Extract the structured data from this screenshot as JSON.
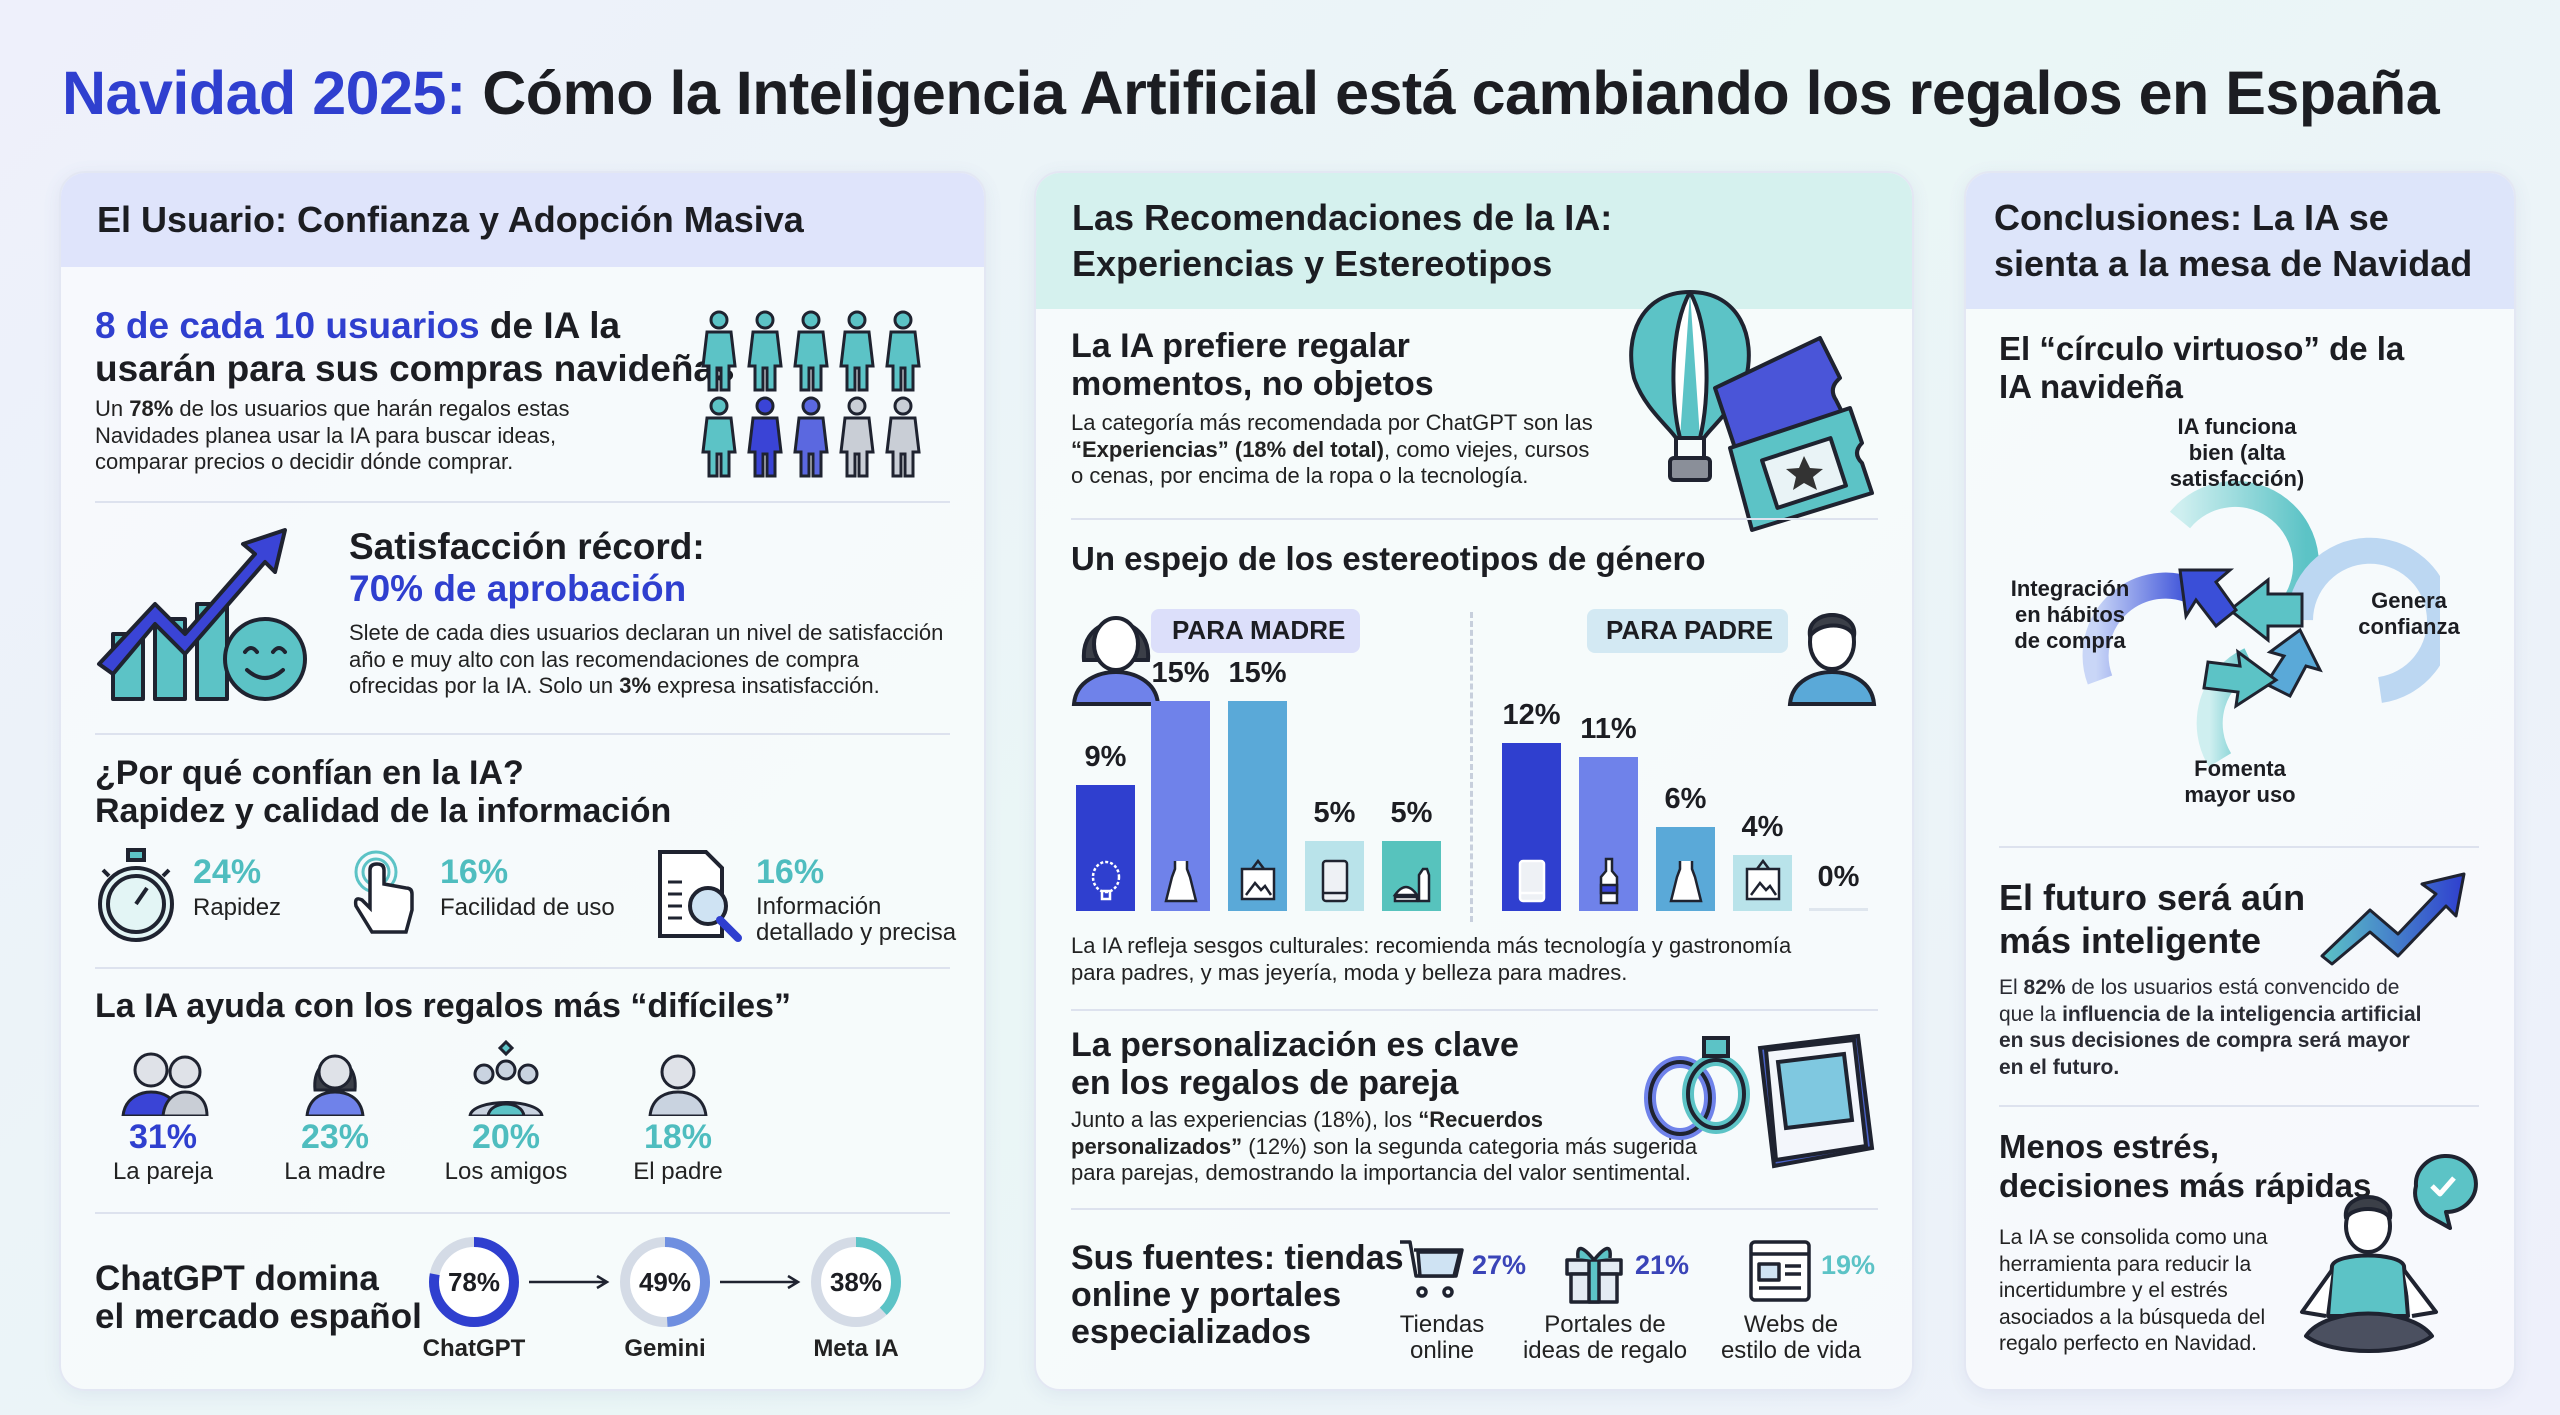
{
  "title": {
    "accent": "Navidad 2025:",
    "rest": " Cómo la Inteligencia Artificial está cambiando los regalos en España"
  },
  "colors": {
    "blue": "#2f3fcf",
    "teal": "#4fbdbf",
    "mid_blue": "#6f82ea",
    "light_blue": "#5aa9d8",
    "gray": "#c9ced6"
  },
  "panel1": {
    "header": "El Usuario: Confianza y Adopción Masiva",
    "adoption": {
      "heading_accent": "8 de cada 10 usuarios",
      "heading_rest": " de IA la\nusarán para sus compras navideñas",
      "body_pre": "Un ",
      "body_bold": "78%",
      "body_post": " de los usuarios que harán regalos estas\nNavidades planea usar la IA para buscar ideas,\ncomparar precios o decidir dónde comprar.",
      "icon": "people-grid-icon"
    },
    "satisfaction": {
      "heading": "Satisfacción récord:",
      "heading_accent": "70% de aprobación",
      "body_pre": "Slete de cada dies usuarios declaran un nivel de satisfacción\naño e muy alto con las recomendaciones de compra\nofrecidas por la IA. Solo un ",
      "body_bold": "3%",
      "body_post": " expresa insatisfacción.",
      "icon": "chart-arrow-smiley-icon"
    },
    "trust": {
      "heading": "¿Por qué confían en la IA?\nRapidez y calidad de la información",
      "items": [
        {
          "value": "24%",
          "label": "Rapidez",
          "icon": "stopwatch-icon"
        },
        {
          "value": "16%",
          "label": "Facilidad de uso",
          "icon": "touch-hand-icon"
        },
        {
          "value": "16%",
          "label": "Información\ndetallado y precisa",
          "icon": "document-search-icon"
        }
      ]
    },
    "difficult": {
      "heading": "La IA ayuda con los regalos más “difíciles”",
      "items": [
        {
          "value": "31%",
          "label": "La pareja",
          "icon": "couple-icon"
        },
        {
          "value": "23%",
          "label": "La madre",
          "icon": "woman-icon"
        },
        {
          "value": "20%",
          "label": "Los amigos",
          "icon": "friends-icon"
        },
        {
          "value": "18%",
          "label": "El padre",
          "icon": "man-icon"
        }
      ]
    },
    "market": {
      "heading": "ChatGPT domina\nel mercado español",
      "items": [
        {
          "value": 78,
          "value_label": "78%",
          "label": "ChatGPT",
          "color": "#2f3fcf"
        },
        {
          "value": 49,
          "value_label": "49%",
          "label": "Gemini",
          "color": "#6f8fe0"
        },
        {
          "value": 38,
          "value_label": "38%",
          "label": "Meta IA",
          "color": "#5cc3c6"
        }
      ]
    }
  },
  "panel2": {
    "header": "Las Recomendaciones de la IA:\nExperiencias y Estereotipos",
    "experiences": {
      "heading": "La IA prefiere regalar\nmomentos, no objetos",
      "body_pre": "La categoría más recomendada por ChatGPT son las\n",
      "body_bold": "“Experiencias” (18% del total)",
      "body_post": ", como viejes, cursos\no cenas, por encima de la ropa o la tecnología."
    },
    "stereotypes": {
      "heading": "Un espejo de los estereotipos de género",
      "caption": "La IA refleja sesgos culturales: recomienda más tecnología y gastronomía\npara padres, y mas jeyería, moda y belleza para madres."
    },
    "personal": {
      "heading": "La personalización es clave\nen los regalos de pareja",
      "body_pre": "Junto a las experiencias (18%), los ",
      "body_bold": "“Recuerdos\npersonalizados”",
      "body_post": " (12%) son la segunda categoria más sugerida\npara parejas, demostrando la importancia del valor sentimental."
    },
    "sources": {
      "heading": "Sus fuentes: tiendas\nonline y portales\nespecializados",
      "items": [
        {
          "value": "27%",
          "label": "Tiendas\nonline",
          "icon": "shopping-cart-icon"
        },
        {
          "value": "21%",
          "label": "Portales de\nideas de regalo",
          "icon": "gift-icon"
        },
        {
          "value": "19%",
          "label": "Webs de\nestilo de vida",
          "icon": "web-page-icon"
        }
      ]
    }
  },
  "chart_data": {
    "type": "bar",
    "groups": [
      {
        "label": "PARA MADRE",
        "values": [
          9,
          15,
          15,
          5,
          5
        ],
        "value_labels": [
          "9%",
          "15%",
          "15%",
          "5%",
          "5%"
        ],
        "icons": [
          "necklace-icon",
          "dress-icon",
          "picture-icon",
          "phone-icon",
          "food-icon"
        ],
        "colors": [
          "#2f3fcf",
          "#6f82ea",
          "#5aa9d8",
          "#b9e3ea",
          "#57c3bd"
        ]
      },
      {
        "label": "PARA PADRE",
        "values": [
          12,
          11,
          6,
          4,
          0
        ],
        "value_labels": [
          "12%",
          "11%",
          "6%",
          "4%",
          "0%"
        ],
        "icons": [
          "phone-icon",
          "bottle-icon",
          "dress-icon",
          "picture-icon",
          ""
        ],
        "colors": [
          "#2f3fcf",
          "#6f82ea",
          "#5aa9d8",
          "#b9e3ea",
          "#dfe6ee"
        ]
      }
    ]
  },
  "panel3": {
    "header": "Conclusiones: La IA se\nsienta a la mesa de Navidad",
    "cycle": {
      "heading": "El “círculo virtuoso” de la\nIA navideña",
      "steps": [
        "IA funciona\nbien (alta\nsatisfacción)",
        "Genera\nconfianza",
        "Fomenta\nmayor uso",
        "Integración\nen hábitos\nde compra"
      ]
    },
    "future": {
      "heading": "El futuro será aún\nmás inteligente",
      "body_pre": "El ",
      "body_bold1": "82%",
      "body_mid": " de los usuarios está convencido de\nque la ",
      "body_bold2": "influencia de la inteligencia artificial\nen sus decisiones de compra será mayor\nen el futuro",
      "body_post": "."
    },
    "stress": {
      "heading": "Menos estrés,\ndecisiones más rápidas",
      "body": "La IA se consolida como una\nherramienta para reducir la\nincertidumbre y el estrés\nasociados a la búsqueda del\nregalo perfecto en Navidad."
    }
  }
}
